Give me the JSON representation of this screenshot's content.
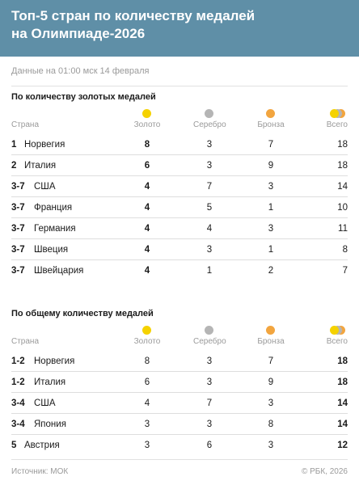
{
  "header": {
    "title_line1": "Топ-5 стран по количеству медалей",
    "title_line2": "на Олимпиаде-2026"
  },
  "dateline": "Данные на 01:00 мск 14 февраля",
  "colors": {
    "header_bg": "#5f8fa7",
    "gold": "#f5d200",
    "silver": "#b5b5b5",
    "bronze": "#f2a53f"
  },
  "columns": {
    "country": "Страна",
    "gold": "Золото",
    "silver": "Серебро",
    "bronze": "Бронза",
    "total": "Всего"
  },
  "gold_table": {
    "title": "По количеству золотых медалей",
    "rows": [
      {
        "rank": "1",
        "country": "Норвегия",
        "gold": "8",
        "silver": "3",
        "bronze": "7",
        "total": "18"
      },
      {
        "rank": "2",
        "country": "Италия",
        "gold": "6",
        "silver": "3",
        "bronze": "9",
        "total": "18"
      },
      {
        "rank": "3-7",
        "country": "США",
        "gold": "4",
        "silver": "7",
        "bronze": "3",
        "total": "14"
      },
      {
        "rank": "3-7",
        "country": "Франция",
        "gold": "4",
        "silver": "5",
        "bronze": "1",
        "total": "10"
      },
      {
        "rank": "3-7",
        "country": "Германия",
        "gold": "4",
        "silver": "4",
        "bronze": "3",
        "total": "11"
      },
      {
        "rank": "3-7",
        "country": "Швеция",
        "gold": "4",
        "silver": "3",
        "bronze": "1",
        "total": "8"
      },
      {
        "rank": "3-7",
        "country": "Швейцария",
        "gold": "4",
        "silver": "1",
        "bronze": "2",
        "total": "7"
      }
    ]
  },
  "total_table": {
    "title": "По общему количеству медалей",
    "rows": [
      {
        "rank": "1-2",
        "country": "Норвегия",
        "gold": "8",
        "silver": "3",
        "bronze": "7",
        "total": "18"
      },
      {
        "rank": "1-2",
        "country": "Италия",
        "gold": "6",
        "silver": "3",
        "bronze": "9",
        "total": "18"
      },
      {
        "rank": "3-4",
        "country": "США",
        "gold": "4",
        "silver": "7",
        "bronze": "3",
        "total": "14"
      },
      {
        "rank": "3-4",
        "country": "Япония",
        "gold": "3",
        "silver": "3",
        "bronze": "8",
        "total": "14"
      },
      {
        "rank": "5",
        "country": "Австрия",
        "gold": "3",
        "silver": "6",
        "bronze": "3",
        "total": "12"
      }
    ]
  },
  "footer": {
    "source": "Источник: МОК",
    "copyright": "© РБК, 2026"
  }
}
